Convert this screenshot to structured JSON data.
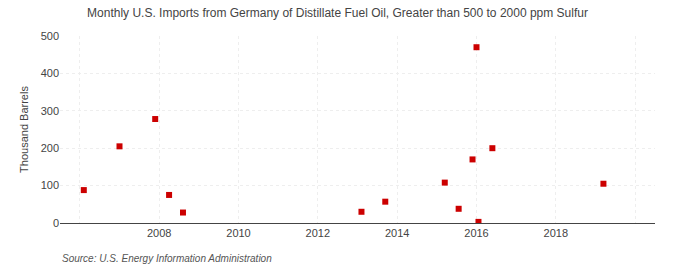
{
  "chart_data": {
    "type": "scatter",
    "title": "Monthly U.S. Imports from Germany of Distillate Fuel Oil, Greater than 500 to 2000 ppm Sulfur",
    "ylabel": "Thousand Barrels",
    "annotations": [
      "Source: U.S. Energy Information Administration"
    ],
    "x": [
      2006.1,
      2007.0,
      2007.9,
      2008.25,
      2008.6,
      2013.1,
      2013.7,
      2015.2,
      2015.55,
      2015.9,
      2016.0,
      2016.05,
      2016.4,
      2019.2
    ],
    "values": [
      88,
      205,
      278,
      75,
      28,
      30,
      57,
      108,
      38,
      170,
      470,
      3,
      200,
      105
    ],
    "color": "#cc0000",
    "marker": "square",
    "xlim": [
      2005.5,
      2020.5
    ],
    "ylim": [
      0,
      500
    ],
    "xticks": [
      {
        "value": 2006,
        "label": null
      },
      2008,
      2010,
      2012,
      2014,
      2016,
      2018,
      {
        "value": 2020,
        "label": null
      }
    ],
    "yticks": [
      0,
      100,
      200,
      300,
      400,
      500
    ],
    "grid": true
  }
}
